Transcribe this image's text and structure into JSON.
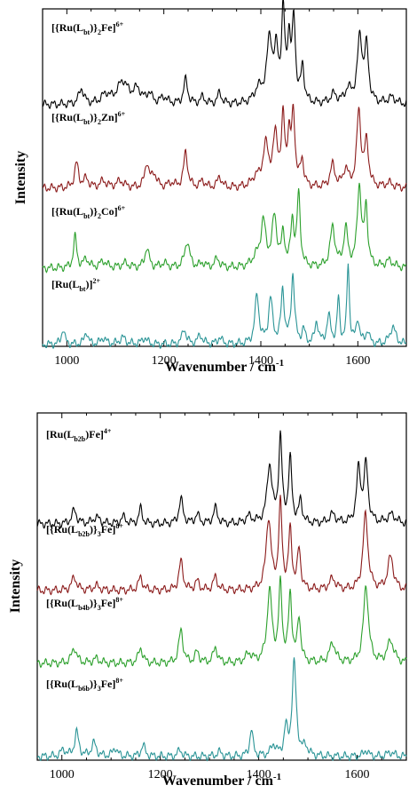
{
  "chart_data": [
    {
      "type": "line",
      "xlabel": "Wavenumber / cm",
      "xlabel_sup": "-1",
      "ylabel": "Intensity",
      "xlim": [
        950,
        1700
      ],
      "xticks": [
        1000,
        1200,
        1400,
        1600
      ],
      "xtick_labels": [
        "1000",
        "1200",
        "1400",
        "1600"
      ],
      "y_ticks_shown": false,
      "grid": false,
      "series": [
        {
          "name": "[{Ru(Lbt)}2Fe]6+",
          "label_parts": [
            {
              "t": "[{Ru(L",
              "s": "n"
            },
            {
              "t": "bt",
              "s": "sub"
            },
            {
              "t": ")}",
              "s": "n"
            },
            {
              "t": "2",
              "s": "sub"
            },
            {
              "t": "Fe]",
              "s": "n"
            },
            {
              "t": "6+",
              "s": "sup"
            }
          ],
          "color": "#000000",
          "peaks": [
            [
              1030,
              0.35,
              6
            ],
            [
              1080,
              0.2,
              10
            ],
            [
              1115,
              0.5,
              14
            ],
            [
              1145,
              0.3,
              10
            ],
            [
              1170,
              0.22,
              6
            ],
            [
              1200,
              0.15,
              8
            ],
            [
              1245,
              0.55,
              5
            ],
            [
              1280,
              0.15,
              6
            ],
            [
              1315,
              0.25,
              5
            ],
            [
              1395,
              0.3,
              10
            ],
            [
              1418,
              1.4,
              7
            ],
            [
              1432,
              1.0,
              5
            ],
            [
              1446,
              1.95,
              4
            ],
            [
              1458,
              1.3,
              4
            ],
            [
              1468,
              1.8,
              4
            ],
            [
              1486,
              0.8,
              4
            ],
            [
              1550,
              0.2,
              8
            ],
            [
              1580,
              0.3,
              8
            ],
            [
              1604,
              1.45,
              6
            ],
            [
              1618,
              1.2,
              5
            ],
            [
              1670,
              0.15,
              10
            ]
          ]
        },
        {
          "name": "[{Ru(Lbt)}2Zn]6+",
          "label_parts": [
            {
              "t": "[{Ru(L",
              "s": "n"
            },
            {
              "t": "bt",
              "s": "sub"
            },
            {
              "t": ")}",
              "s": "n"
            },
            {
              "t": "2",
              "s": "sub"
            },
            {
              "t": "Zn]",
              "s": "n"
            },
            {
              "t": "6+",
              "s": "sup"
            }
          ],
          "color": "#8b1a1a",
          "peaks": [
            [
              1020,
              0.55,
              5
            ],
            [
              1040,
              0.2,
              6
            ],
            [
              1075,
              0.15,
              8
            ],
            [
              1110,
              0.15,
              10
            ],
            [
              1165,
              0.55,
              5
            ],
            [
              1180,
              0.3,
              6
            ],
            [
              1215,
              0.1,
              8
            ],
            [
              1245,
              0.8,
              5
            ],
            [
              1280,
              0.15,
              6
            ],
            [
              1315,
              0.25,
              5
            ],
            [
              1390,
              0.2,
              10
            ],
            [
              1410,
              0.9,
              7
            ],
            [
              1430,
              1.1,
              6
            ],
            [
              1446,
              1.45,
              4
            ],
            [
              1458,
              1.0,
              4
            ],
            [
              1467,
              1.6,
              4
            ],
            [
              1485,
              0.6,
              4
            ],
            [
              1548,
              0.5,
              6
            ],
            [
              1575,
              0.4,
              6
            ],
            [
              1602,
              1.7,
              5
            ],
            [
              1618,
              1.0,
              5
            ],
            [
              1665,
              0.1,
              10
            ]
          ]
        },
        {
          "name": "[{Ru(Lbt)}2Co]6+",
          "label_parts": [
            {
              "t": "[{Ru(L",
              "s": "n"
            },
            {
              "t": "bt",
              "s": "sub"
            },
            {
              "t": ")}",
              "s": "n"
            },
            {
              "t": "2",
              "s": "sub"
            },
            {
              "t": "Co]",
              "s": "n"
            },
            {
              "t": "6+",
              "s": "sup"
            }
          ],
          "color": "#2ca02c",
          "peaks": [
            [
              1017,
              0.7,
              4
            ],
            [
              1040,
              0.2,
              6
            ],
            [
              1075,
              0.15,
              8
            ],
            [
              1120,
              0.1,
              10
            ],
            [
              1165,
              0.45,
              5
            ],
            [
              1200,
              0.1,
              8
            ],
            [
              1248,
              0.6,
              6
            ],
            [
              1280,
              0.1,
              6
            ],
            [
              1310,
              0.2,
              6
            ],
            [
              1390,
              0.2,
              10
            ],
            [
              1405,
              1.0,
              6
            ],
            [
              1428,
              1.1,
              6
            ],
            [
              1446,
              0.7,
              4
            ],
            [
              1465,
              1.0,
              4
            ],
            [
              1478,
              1.6,
              4
            ],
            [
              1548,
              0.9,
              6
            ],
            [
              1575,
              0.85,
              5
            ],
            [
              1603,
              1.8,
              5
            ],
            [
              1617,
              1.3,
              4
            ],
            [
              1665,
              0.15,
              10
            ]
          ]
        },
        {
          "name": "[Ru(Lbt)]2+",
          "label_parts": [
            {
              "t": "[Ru(L",
              "s": "n"
            },
            {
              "t": "bt",
              "s": "sub"
            },
            {
              "t": ")]",
              "s": "n"
            },
            {
              "t": "2+",
              "s": "sup"
            }
          ],
          "color": "#2a9496",
          "peaks": [
            [
              992,
              0.35,
              4
            ],
            [
              1040,
              0.3,
              4
            ],
            [
              1075,
              0.15,
              6
            ],
            [
              1115,
              0.15,
              8
            ],
            [
              1160,
              0.15,
              6
            ],
            [
              1242,
              0.35,
              5
            ],
            [
              1275,
              0.2,
              6
            ],
            [
              1315,
              0.15,
              5
            ],
            [
              1392,
              1.1,
              5
            ],
            [
              1420,
              1.0,
              5
            ],
            [
              1445,
              1.2,
              4
            ],
            [
              1466,
              1.55,
              4
            ],
            [
              1488,
              0.3,
              4
            ],
            [
              1515,
              0.5,
              4
            ],
            [
              1540,
              0.6,
              5
            ],
            [
              1560,
              1.0,
              3
            ],
            [
              1580,
              1.8,
              3
            ],
            [
              1600,
              0.55,
              4
            ],
            [
              1620,
              0.3,
              4
            ],
            [
              1672,
              0.4,
              7
            ]
          ]
        }
      ]
    },
    {
      "type": "line",
      "xlabel": "Wavenumber / cm",
      "xlabel_sup": "-1",
      "ylabel": "Intensity",
      "xlim": [
        950,
        1700
      ],
      "xticks": [
        1000,
        1200,
        1400,
        1600
      ],
      "xtick_labels": [
        "1000",
        "1200",
        "1400",
        "1600"
      ],
      "y_ticks_shown": false,
      "grid": false,
      "series": [
        {
          "name": "[Ru(Lb2b)Fe]4+",
          "label_parts": [
            {
              "t": "[Ru(L",
              "s": "n"
            },
            {
              "t": "b2b",
              "s": "sub"
            },
            {
              "t": ")Fe]",
              "s": "n"
            },
            {
              "t": "4+",
              "s": "sup"
            }
          ],
          "color": "#000000",
          "peaks": [
            [
              1025,
              0.3,
              6
            ],
            [
              1070,
              0.15,
              8
            ],
            [
              1125,
              0.15,
              6
            ],
            [
              1160,
              0.35,
              4
            ],
            [
              1242,
              0.55,
              5
            ],
            [
              1275,
              0.2,
              5
            ],
            [
              1312,
              0.35,
              5
            ],
            [
              1380,
              0.15,
              8
            ],
            [
              1422,
              1.3,
              6
            ],
            [
              1444,
              1.9,
              4
            ],
            [
              1464,
              1.4,
              4
            ],
            [
              1485,
              0.5,
              4
            ],
            [
              1550,
              0.2,
              8
            ],
            [
              1603,
              1.2,
              5
            ],
            [
              1618,
              1.3,
              5
            ],
            [
              1670,
              0.2,
              10
            ]
          ]
        },
        {
          "name": "[{Ru(Lb2b)}3Fe]8+",
          "label_parts": [
            {
              "t": "[{Ru(L",
              "s": "n"
            },
            {
              "t": "b2b",
              "s": "sub"
            },
            {
              "t": ")}",
              "s": "n"
            },
            {
              "t": "3",
              "s": "sub"
            },
            {
              "t": "Fe]",
              "s": "n"
            },
            {
              "t": "8+",
              "s": "sup"
            }
          ],
          "color": "#8b1a1a",
          "peaks": [
            [
              1025,
              0.3,
              6
            ],
            [
              1070,
              0.1,
              8
            ],
            [
              1160,
              0.3,
              5
            ],
            [
              1242,
              0.65,
              5
            ],
            [
              1275,
              0.2,
              5
            ],
            [
              1312,
              0.3,
              5
            ],
            [
              1420,
              1.6,
              6
            ],
            [
              1444,
              1.9,
              4
            ],
            [
              1464,
              1.3,
              4
            ],
            [
              1482,
              0.9,
              4
            ],
            [
              1550,
              0.25,
              8
            ],
            [
              1617,
              1.7,
              6
            ],
            [
              1668,
              0.75,
              7
            ]
          ]
        },
        {
          "name": "[{Ru(Lb4b)}3Fe]8+",
          "label_parts": [
            {
              "t": "[{Ru(L",
              "s": "n"
            },
            {
              "t": "b4b",
              "s": "sub"
            },
            {
              "t": ")}",
              "s": "n"
            },
            {
              "t": "3",
              "s": "sub"
            },
            {
              "t": "Fe]",
              "s": "n"
            },
            {
              "t": "8+",
              "s": "sup"
            }
          ],
          "color": "#2ca02c",
          "peaks": [
            [
              1025,
              0.35,
              6
            ],
            [
              1070,
              0.1,
              8
            ],
            [
              1160,
              0.35,
              5
            ],
            [
              1242,
              0.75,
              5
            ],
            [
              1275,
              0.25,
              5
            ],
            [
              1312,
              0.35,
              5
            ],
            [
              1380,
              0.2,
              8
            ],
            [
              1422,
              1.6,
              6
            ],
            [
              1444,
              1.7,
              4
            ],
            [
              1464,
              1.5,
              4
            ],
            [
              1482,
              1.0,
              4
            ],
            [
              1550,
              0.45,
              7
            ],
            [
              1618,
              1.75,
              6
            ],
            [
              1668,
              0.5,
              8
            ]
          ]
        },
        {
          "name": "[{Ru(Lb6b)}3Fe]8+",
          "label_parts": [
            {
              "t": "[{Ru(L",
              "s": "n"
            },
            {
              "t": "b6b",
              "s": "sub"
            },
            {
              "t": ")}",
              "s": "n"
            },
            {
              "t": "3",
              "s": "sub"
            },
            {
              "t": "Fe]",
              "s": "n"
            },
            {
              "t": "8+",
              "s": "sup"
            }
          ],
          "color": "#2a9496",
          "peaks": [
            [
              1003,
              0.15,
              6
            ],
            [
              1030,
              0.55,
              5
            ],
            [
              1065,
              0.3,
              6
            ],
            [
              1108,
              0.2,
              5
            ],
            [
              1165,
              0.25,
              5
            ],
            [
              1240,
              0.15,
              5
            ],
            [
              1320,
              0.1,
              6
            ],
            [
              1385,
              0.6,
              4
            ],
            [
              1430,
              0.25,
              6
            ],
            [
              1455,
              0.6,
              4
            ],
            [
              1472,
              2.1,
              5
            ],
            [
              1495,
              0.2,
              6
            ],
            [
              1618,
              0.15,
              5
            ],
            [
              1668,
              0.1,
              8
            ]
          ]
        }
      ]
    }
  ]
}
